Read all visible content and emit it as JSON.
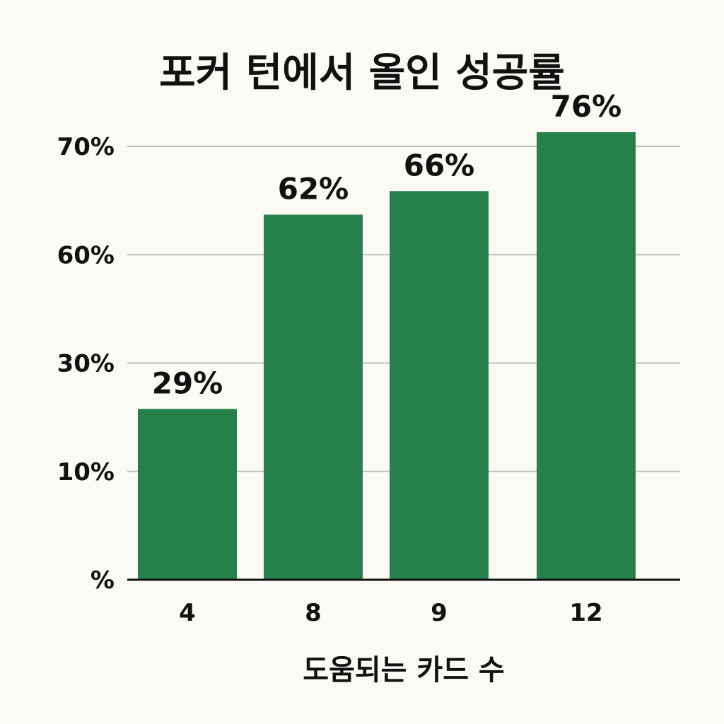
{
  "chart_data": {
    "type": "bar",
    "title": "포커 턴에서 올인 성공률",
    "xlabel": "도움되는 카드 수",
    "ylabel": "",
    "categories": [
      "4",
      "8",
      "9",
      "12"
    ],
    "values": [
      29,
      62,
      66,
      76
    ],
    "data_labels": [
      "29%",
      "62%",
      "66%",
      "76%"
    ],
    "y_tick_labels": [
      "%",
      "10%",
      "30%",
      "60%",
      "70%"
    ],
    "ylim": [
      0,
      85
    ],
    "grid": true,
    "colors": {
      "bar": "#26804a",
      "grid": "#b9c1b9",
      "axis": "#111111",
      "background": "#fbfaf4"
    }
  }
}
